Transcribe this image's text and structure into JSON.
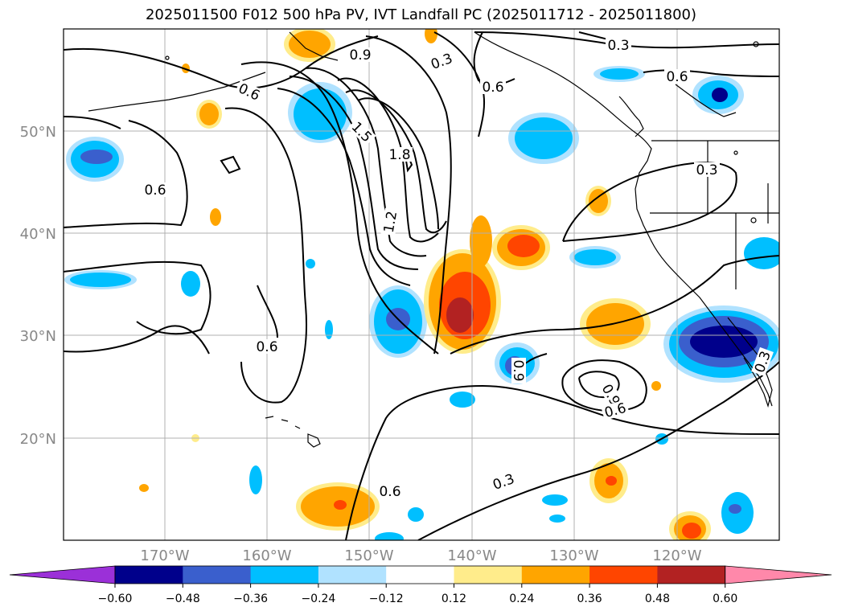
{
  "title": "2025011500 F012 500 hPa PV, IVT Landfall PC (2025011712 - 2025011800)",
  "lat_labels": [
    "50°N",
    "40°N",
    "30°N",
    "20°N"
  ],
  "lon_labels": [
    "170°W",
    "160°W",
    "150°W",
    "140°W",
    "130°W",
    "120°W"
  ],
  "colorbar": {
    "colors": [
      "#9b30d8",
      "#00008b",
      "#3a5fcd",
      "#00bfff",
      "#b0e2ff",
      "#ffffff",
      "#ffec8b",
      "#ffa500",
      "#ff4500",
      "#b22222",
      "#ff88aa"
    ],
    "ticks": [
      "−0.60",
      "−0.48",
      "−0.36",
      "−0.24",
      "−0.12",
      "0.12",
      "0.24",
      "0.36",
      "0.48",
      "0.60"
    ]
  },
  "contour_labels": [
    {
      "text": "0.9"
    },
    {
      "text": "0.3"
    },
    {
      "text": "0.6"
    },
    {
      "text": "0.6"
    },
    {
      "text": "0.3"
    },
    {
      "text": "0.6"
    },
    {
      "text": "1.5"
    },
    {
      "text": "1.8"
    },
    {
      "text": "0.6"
    },
    {
      "text": "1.2"
    },
    {
      "text": "0.3"
    },
    {
      "text": "0.6"
    },
    {
      "text": "0.9"
    },
    {
      "text": "0.6"
    },
    {
      "text": "0.3"
    },
    {
      "text": "0.6"
    },
    {
      "text": "0.9"
    },
    {
      "text": "0.3"
    }
  ]
}
